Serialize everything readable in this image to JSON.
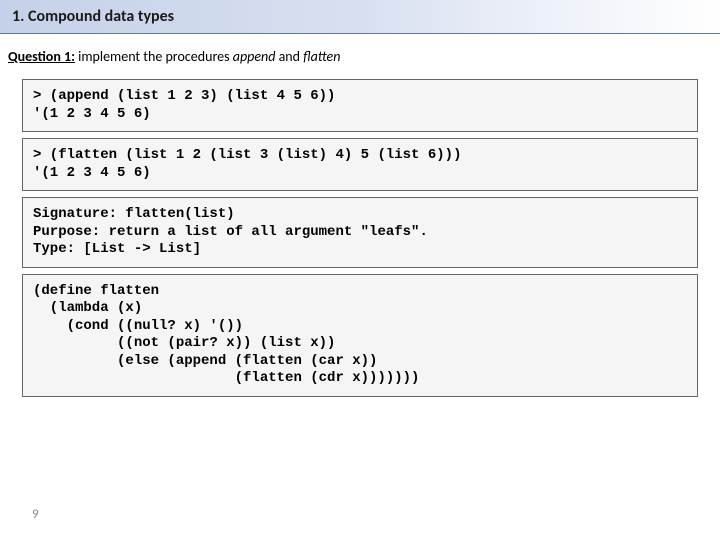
{
  "title": "1. Compound data types",
  "question": {
    "label": "Question 1:",
    "text_before": " implement the procedures ",
    "proc1": "append",
    "mid": " and ",
    "proc2": "flatten"
  },
  "code_block_1": "> (append (list 1 2 3) (list 4 5 6))\n'(1 2 3 4 5 6)",
  "code_block_2": "> (flatten (list 1 2 (list 3 (list) 4) 5 (list 6)))\n'(1 2 3 4 5 6)",
  "code_block_3": "Signature: flatten(list)\nPurpose: return a list of all argument \"leafs\".\nType: [List -> List]",
  "code_block_4": "(define flatten\n  (lambda (x)\n    (cond ((null? x) '())\n          ((not (pair? x)) (list x))\n          (else (append (flatten (car x))\n                        (flatten (cdr x)))))))",
  "page_number": "9",
  "colors": {
    "title_bg_start": "#c5d1e8",
    "title_bg_end": "#ffffff",
    "title_border": "#5a7aad",
    "code_bg": "#f5f5f5",
    "code_border": "#666666",
    "page_num_color": "#888888"
  }
}
